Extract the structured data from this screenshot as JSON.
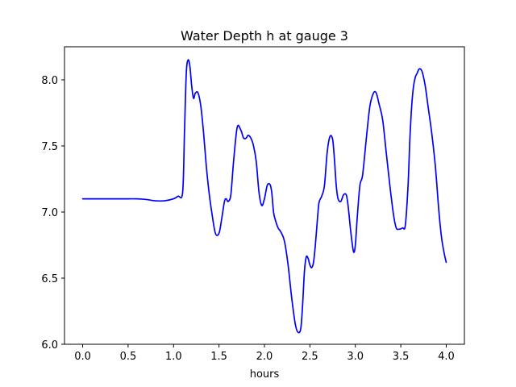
{
  "chart_data": {
    "type": "line",
    "title": "Water Depth h at gauge 3",
    "xlabel": "hours",
    "ylabel": "",
    "xlim": [
      -0.2,
      4.2
    ],
    "ylim": [
      6.0,
      8.25
    ],
    "xticks": [
      0.0,
      0.5,
      1.0,
      1.5,
      2.0,
      2.5,
      3.0,
      3.5,
      4.0
    ],
    "xtick_labels": [
      "0.0",
      "0.5",
      "1.0",
      "1.5",
      "2.0",
      "2.5",
      "3.0",
      "3.5",
      "4.0"
    ],
    "yticks": [
      6.0,
      6.5,
      7.0,
      7.5,
      8.0
    ],
    "ytick_labels": [
      "6.0",
      "6.5",
      "7.0",
      "7.5",
      "8.0"
    ],
    "grid": false,
    "series": [
      {
        "color": "#0000ff",
        "x": [
          0.0,
          0.1,
          0.2,
          0.3,
          0.4,
          0.5,
          0.6,
          0.7,
          0.8,
          0.9,
          1.0,
          1.05,
          1.1,
          1.12,
          1.14,
          1.16,
          1.18,
          1.2,
          1.22,
          1.24,
          1.27,
          1.3,
          1.33,
          1.36,
          1.39,
          1.42,
          1.46,
          1.5,
          1.53,
          1.56,
          1.58,
          1.6,
          1.63,
          1.66,
          1.7,
          1.74,
          1.77,
          1.8,
          1.82,
          1.85,
          1.88,
          1.91,
          1.94,
          1.97,
          2.0,
          2.03,
          2.06,
          2.08,
          2.1,
          2.12,
          2.15,
          2.18,
          2.22,
          2.26,
          2.3,
          2.34,
          2.37,
          2.4,
          2.42,
          2.44,
          2.46,
          2.48,
          2.5,
          2.52,
          2.54,
          2.56,
          2.58,
          2.6,
          2.63,
          2.66,
          2.69,
          2.72,
          2.75,
          2.77,
          2.79,
          2.81,
          2.84,
          2.87,
          2.9,
          2.92,
          2.95,
          2.98,
          3.0,
          3.02,
          3.05,
          3.08,
          3.12,
          3.16,
          3.2,
          3.23,
          3.26,
          3.3,
          3.34,
          3.38,
          3.42,
          3.45,
          3.48,
          3.52,
          3.55,
          3.58,
          3.6,
          3.62,
          3.64,
          3.66,
          3.68,
          3.7,
          3.72,
          3.74,
          3.77,
          3.8,
          3.84,
          3.88,
          3.92,
          3.95,
          3.98,
          4.0
        ],
        "y": [
          7.1,
          7.1,
          7.1,
          7.1,
          7.1,
          7.1,
          7.1,
          7.095,
          7.085,
          7.085,
          7.1,
          7.12,
          7.15,
          7.6,
          8.05,
          8.15,
          8.1,
          7.95,
          7.86,
          7.9,
          7.9,
          7.8,
          7.6,
          7.35,
          7.15,
          7.0,
          6.84,
          6.84,
          6.95,
          7.08,
          7.1,
          7.08,
          7.13,
          7.38,
          7.64,
          7.62,
          7.56,
          7.56,
          7.58,
          7.56,
          7.5,
          7.38,
          7.15,
          7.05,
          7.1,
          7.2,
          7.21,
          7.15,
          7.0,
          6.94,
          6.88,
          6.85,
          6.78,
          6.6,
          6.35,
          6.15,
          6.09,
          6.12,
          6.3,
          6.55,
          6.66,
          6.65,
          6.6,
          6.58,
          6.62,
          6.75,
          6.92,
          7.07,
          7.12,
          7.2,
          7.45,
          7.57,
          7.55,
          7.4,
          7.2,
          7.1,
          7.08,
          7.13,
          7.13,
          7.05,
          6.85,
          6.7,
          6.75,
          6.95,
          7.2,
          7.28,
          7.55,
          7.8,
          7.9,
          7.9,
          7.82,
          7.7,
          7.45,
          7.2,
          6.98,
          6.88,
          6.87,
          6.88,
          6.9,
          7.2,
          7.55,
          7.8,
          7.95,
          8.02,
          8.05,
          8.08,
          8.08,
          8.05,
          7.95,
          7.8,
          7.6,
          7.35,
          7.0,
          6.8,
          6.68,
          6.62
        ]
      }
    ]
  }
}
